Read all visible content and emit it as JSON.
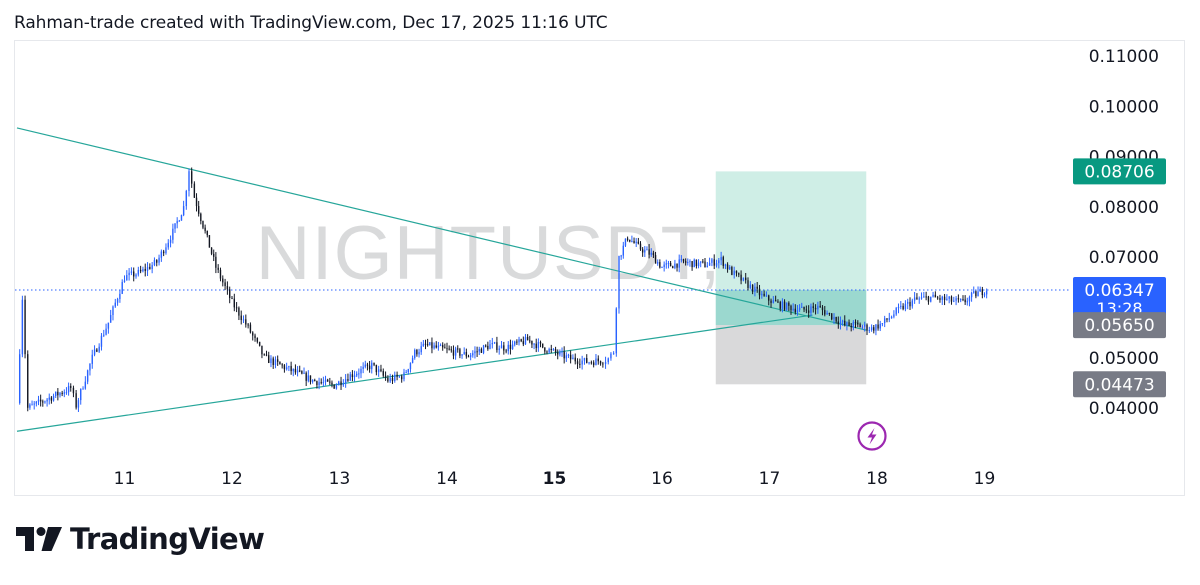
{
  "header": {
    "text": "Rahman-trade created with TradingView.com, Dec 17, 2025 11:16 UTC"
  },
  "watermark": {
    "text": "NIGHTUSDT, 30"
  },
  "brand": {
    "name": "TradingView",
    "logo_icon": "tradingview-logo-icon"
  },
  "colors": {
    "up": "#2962ff",
    "down": "#131722",
    "trendline": "#26a69a",
    "target_zone": "#cfeee6",
    "stop_zone": "#d9d9da",
    "price_line": "#2962ff",
    "target_label": "#089981",
    "current_label": "#2962ff",
    "gray_label": "#787b86",
    "lightning": "#9c27b0"
  },
  "chart_data": {
    "type": "candlestick",
    "symbol": "NIGHTUSDT",
    "interval": "30",
    "x_ticks": [
      {
        "label": "11",
        "day": 11,
        "bold": false
      },
      {
        "label": "12",
        "day": 12,
        "bold": false
      },
      {
        "label": "13",
        "day": 13,
        "bold": false
      },
      {
        "label": "14",
        "day": 14,
        "bold": false
      },
      {
        "label": "15",
        "day": 15,
        "bold": true
      },
      {
        "label": "16",
        "day": 16,
        "bold": false
      },
      {
        "label": "17",
        "day": 17,
        "bold": false
      },
      {
        "label": "18",
        "day": 18,
        "bold": false
      },
      {
        "label": "19",
        "day": 19,
        "bold": false
      }
    ],
    "y_ticks": [
      "0.11000",
      "0.10000",
      "0.09000",
      "0.08000",
      "0.07000",
      "0.05000",
      "0.04000"
    ],
    "y_tick_values": [
      0.11,
      0.1,
      0.09,
      0.08,
      0.07,
      0.05,
      0.04
    ],
    "price_labels": [
      {
        "kind": "target",
        "text": "0.08706",
        "value": 0.08706
      },
      {
        "kind": "current",
        "text": "0.06347",
        "countdown": "13:28",
        "value": 0.06347
      },
      {
        "kind": "entry",
        "text": "0.05650",
        "value": 0.0565
      },
      {
        "kind": "stop",
        "text": "0.04473",
        "value": 0.04473
      }
    ],
    "position": {
      "start_day": 16.5,
      "end_day": 17.9,
      "entry": 0.0565,
      "target": 0.08706,
      "stop": 0.04473
    },
    "trendlines": [
      {
        "name": "upper",
        "from": [
          10.0,
          0.0957
        ],
        "to": [
          17.9,
          0.0555
        ]
      },
      {
        "name": "lower",
        "from": [
          10.0,
          0.0354
        ],
        "to": [
          17.4,
          0.0585
        ]
      }
    ],
    "price_path": [
      [
        10.0,
        0.041
      ],
      [
        10.05,
        0.062
      ],
      [
        10.1,
        0.04
      ],
      [
        10.3,
        0.042
      ],
      [
        10.5,
        0.044
      ],
      [
        10.55,
        0.0405
      ],
      [
        10.7,
        0.05
      ],
      [
        10.85,
        0.057
      ],
      [
        11.0,
        0.066
      ],
      [
        11.15,
        0.067
      ],
      [
        11.3,
        0.069
      ],
      [
        11.45,
        0.075
      ],
      [
        11.55,
        0.08
      ],
      [
        11.6,
        0.0875
      ],
      [
        11.65,
        0.082
      ],
      [
        11.75,
        0.075
      ],
      [
        11.85,
        0.068
      ],
      [
        12.0,
        0.061
      ],
      [
        12.15,
        0.056
      ],
      [
        12.3,
        0.05
      ],
      [
        12.55,
        0.0475
      ],
      [
        12.75,
        0.0455
      ],
      [
        12.95,
        0.0445
      ],
      [
        13.1,
        0.0465
      ],
      [
        13.3,
        0.0485
      ],
      [
        13.45,
        0.0455
      ],
      [
        13.6,
        0.0465
      ],
      [
        13.7,
        0.051
      ],
      [
        13.8,
        0.0525
      ],
      [
        14.0,
        0.0515
      ],
      [
        14.2,
        0.0505
      ],
      [
        14.4,
        0.0525
      ],
      [
        14.55,
        0.052
      ],
      [
        14.75,
        0.0535
      ],
      [
        14.95,
        0.0515
      ],
      [
        15.15,
        0.0498
      ],
      [
        15.3,
        0.0492
      ],
      [
        15.45,
        0.0495
      ],
      [
        15.5,
        0.0498
      ],
      [
        15.55,
        0.0512
      ],
      [
        15.6,
        0.07
      ],
      [
        15.68,
        0.074
      ],
      [
        15.78,
        0.072
      ],
      [
        15.9,
        0.0705
      ],
      [
        16.0,
        0.068
      ],
      [
        16.2,
        0.069
      ],
      [
        16.4,
        0.0685
      ],
      [
        16.55,
        0.0695
      ],
      [
        16.65,
        0.067
      ],
      [
        16.8,
        0.0645
      ],
      [
        16.95,
        0.062
      ],
      [
        17.1,
        0.0605
      ],
      [
        17.3,
        0.0595
      ],
      [
        17.45,
        0.06
      ],
      [
        17.6,
        0.058
      ],
      [
        17.7,
        0.0565
      ],
      [
        17.8,
        0.0565
      ],
      [
        17.95,
        0.0558
      ],
      [
        18.05,
        0.0568
      ],
      [
        18.2,
        0.0595
      ],
      [
        18.35,
        0.0615
      ],
      [
        18.5,
        0.062
      ],
      [
        18.65,
        0.0615
      ],
      [
        18.8,
        0.061
      ],
      [
        18.9,
        0.0625
      ],
      [
        19.0,
        0.0634
      ],
      [
        19.02,
        0.0636
      ]
    ]
  }
}
